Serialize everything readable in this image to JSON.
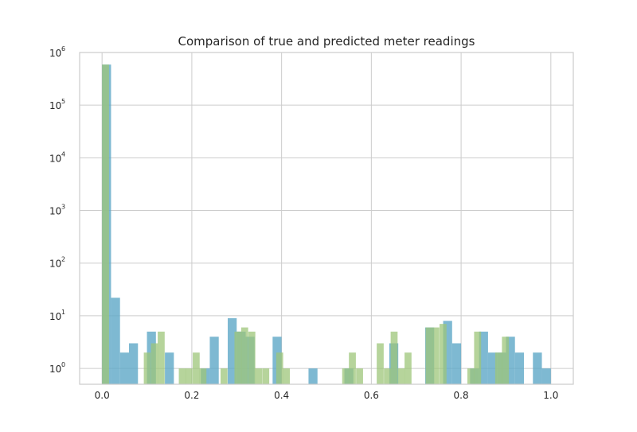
{
  "chart_data": {
    "type": "bar",
    "title": "Comparison of true and predicted meter readings",
    "xlabel": "",
    "ylabel": "",
    "x_scale": "linear",
    "y_scale": "log",
    "xlim": [
      -0.05,
      1.05
    ],
    "ylim": [
      0.5,
      1000000
    ],
    "grid": true,
    "legend": "none",
    "x_ticks": [
      "0.0",
      "0.2",
      "0.4",
      "0.6",
      "0.8",
      "1.0"
    ],
    "x_tick_values": [
      0.0,
      0.2,
      0.4,
      0.6,
      0.8,
      1.0
    ],
    "y_tick_base": [
      "10",
      "10",
      "10",
      "10",
      "10",
      "10",
      "10"
    ],
    "y_tick_exp": [
      "0",
      "1",
      "2",
      "3",
      "4",
      "5",
      "6"
    ],
    "y_tick_values": [
      1,
      10,
      100,
      1000,
      10000,
      100000,
      1000000
    ],
    "series": [
      {
        "color": "#5ea7c7",
        "opacity": 0.8,
        "bin_width": 0.02,
        "bins": [
          {
            "x": 0.0,
            "count": 590000
          },
          {
            "x": 0.02,
            "count": 22
          },
          {
            "x": 0.04,
            "count": 2
          },
          {
            "x": 0.06,
            "count": 3
          },
          {
            "x": 0.1,
            "count": 5
          },
          {
            "x": 0.14,
            "count": 2
          },
          {
            "x": 0.22,
            "count": 1
          },
          {
            "x": 0.24,
            "count": 4
          },
          {
            "x": 0.28,
            "count": 9
          },
          {
            "x": 0.3,
            "count": 5
          },
          {
            "x": 0.32,
            "count": 4
          },
          {
            "x": 0.38,
            "count": 4
          },
          {
            "x": 0.46,
            "count": 1
          },
          {
            "x": 0.54,
            "count": 1
          },
          {
            "x": 0.64,
            "count": 3
          },
          {
            "x": 0.72,
            "count": 6
          },
          {
            "x": 0.76,
            "count": 8
          },
          {
            "x": 0.78,
            "count": 3
          },
          {
            "x": 0.82,
            "count": 1
          },
          {
            "x": 0.84,
            "count": 5
          },
          {
            "x": 0.86,
            "count": 2
          },
          {
            "x": 0.88,
            "count": 2
          },
          {
            "x": 0.9,
            "count": 4
          },
          {
            "x": 0.92,
            "count": 2
          },
          {
            "x": 0.96,
            "count": 2
          },
          {
            "x": 0.98,
            "count": 1
          }
        ]
      },
      {
        "color": "#9dc67a",
        "opacity": 0.75,
        "bin_width": 0.0155,
        "bins": [
          {
            "x": 0.0,
            "count": 590000
          },
          {
            "x": 0.093,
            "count": 2
          },
          {
            "x": 0.109,
            "count": 3
          },
          {
            "x": 0.124,
            "count": 5
          },
          {
            "x": 0.171,
            "count": 1
          },
          {
            "x": 0.186,
            "count": 1
          },
          {
            "x": 0.202,
            "count": 2
          },
          {
            "x": 0.217,
            "count": 1
          },
          {
            "x": 0.264,
            "count": 1
          },
          {
            "x": 0.295,
            "count": 5
          },
          {
            "x": 0.31,
            "count": 6
          },
          {
            "x": 0.326,
            "count": 5
          },
          {
            "x": 0.341,
            "count": 1
          },
          {
            "x": 0.357,
            "count": 1
          },
          {
            "x": 0.388,
            "count": 2
          },
          {
            "x": 0.403,
            "count": 1
          },
          {
            "x": 0.535,
            "count": 1
          },
          {
            "x": 0.55,
            "count": 2
          },
          {
            "x": 0.566,
            "count": 1
          },
          {
            "x": 0.612,
            "count": 3
          },
          {
            "x": 0.628,
            "count": 1
          },
          {
            "x": 0.643,
            "count": 5
          },
          {
            "x": 0.659,
            "count": 1
          },
          {
            "x": 0.674,
            "count": 2
          },
          {
            "x": 0.721,
            "count": 6
          },
          {
            "x": 0.736,
            "count": 6
          },
          {
            "x": 0.752,
            "count": 7
          },
          {
            "x": 0.814,
            "count": 1
          },
          {
            "x": 0.829,
            "count": 5
          },
          {
            "x": 0.876,
            "count": 2
          },
          {
            "x": 0.891,
            "count": 4
          }
        ]
      }
    ]
  }
}
